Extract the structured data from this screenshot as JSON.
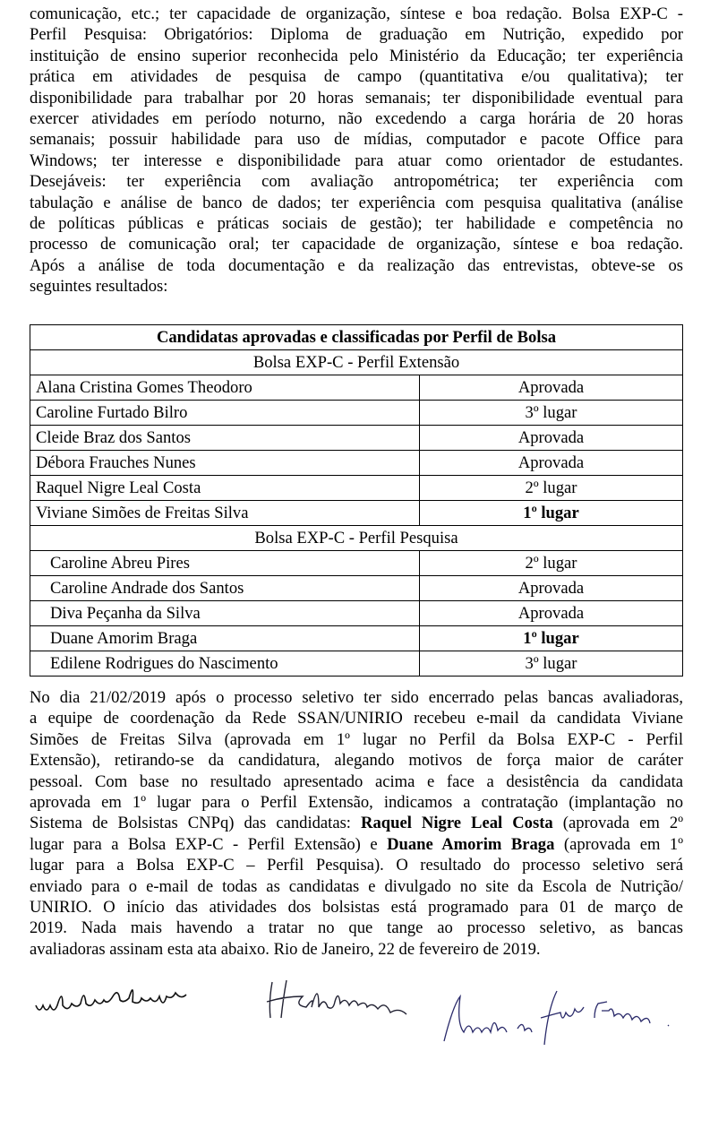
{
  "intro": {
    "lines": [
      "comunicação, etc.; ter capacidade de organização, síntese e boa redação. Bolsa EXP-C -",
      "Perfil Pesquisa: Obrigatórios: Diploma de graduação em Nutrição, expedido por",
      "instituição de ensino superior reconhecida pelo Ministério da Educação; ter experiência",
      "prática em atividades de pesquisa de campo (quantitativa e/ou qualitativa); ter",
      "disponibilidade para trabalhar por 20 horas semanais; ter disponibilidade eventual para",
      "exercer atividades em período noturno, não excedendo a carga horária de 20 horas",
      "semanais; possuir habilidade para uso de mídias, computador e pacote Office para",
      "Windows; ter interesse e disponibilidade para atuar como orientador de estudantes.",
      "Desejáveis: ter experiência com avaliação antropométrica; ter experiência com",
      "tabulação e análise de banco de dados; ter experiência com pesquisa qualitativa (análise",
      "de políticas públicas e práticas sociais de gestão); ter habilidade e competência no",
      "processo de comunicação oral; ter capacidade de organização, síntese e boa redação.",
      "Após a análise de toda documentação e da realização das entrevistas, obteve-se os",
      "seguintes resultados:"
    ]
  },
  "table": {
    "title": "Candidatas aprovadas e classificadas por Perfil de Bolsa",
    "sections": [
      {
        "label": "Bolsa EXP-C - Perfil Extensão",
        "rows": [
          {
            "name": "Alana Cristina Gomes Theodoro",
            "result": "Aprovada"
          },
          {
            "name": "Caroline Furtado Bilro",
            "result": "3º lugar"
          },
          {
            "name": "Cleide Braz dos Santos",
            "result": "Aprovada"
          },
          {
            "name": "Débora Frauches Nunes",
            "result": "Aprovada"
          },
          {
            "name": "Raquel Nigre Leal Costa",
            "result": "2º lugar"
          },
          {
            "name": "Viviane Simões de Freitas Silva",
            "result": "1º lugar"
          }
        ]
      },
      {
        "label": "Bolsa EXP-C - Perfil Pesquisa",
        "rows": [
          {
            "name": "Caroline Abreu Pires",
            "result": "2º lugar"
          },
          {
            "name": "Caroline Andrade dos Santos",
            "result": "Aprovada"
          },
          {
            "name": "Diva Peçanha da Silva",
            "result": "Aprovada"
          },
          {
            "name": "Duane Amorim Braga",
            "result": "1º lugar"
          },
          {
            "name": "Edilene Rodrigues do Nascimento",
            "result": "3º lugar"
          }
        ]
      }
    ]
  },
  "outro": {
    "lines": [
      "No dia 21/02/2019 após o processo seletivo ter sido encerrado pelas bancas avaliadoras,",
      "a equipe de coordenação da Rede SSAN/UNIRIO recebeu e-mail da candidata Viviane",
      "Simões de Freitas Silva (aprovada em 1º lugar no Perfil da Bolsa EXP-C - Perfil",
      "Extensão), retirando-se da candidatura, alegando motivos de força maior de caráter",
      "pessoal. Com base no resultado apresentado acima e face a desistência da candidata",
      "aprovada em 1º lugar para o Perfil Extensão, indicamos a contratação (implantação no"
    ],
    "line7": {
      "a": "Sistema de Bolsistas CNPq) das candidatas: ",
      "b": "Raquel Nigre Leal Costa",
      "c": " (aprovada em 2º"
    },
    "line8": {
      "a": "lugar para a Bolsa EXP-C - Perfil Extensão) e ",
      "b": "Duane Amorim Braga",
      "c": " (aprovada em 1º"
    },
    "lines_end": [
      "lugar para a Bolsa EXP-C – Perfil Pesquisa). O resultado do processo seletivo será",
      "enviado para o e-mail de todas as candidatas e divulgado no site da Escola de Nutrição/",
      "UNIRIO. O início das atividades dos bolsistas está programado para 01 de março de",
      "2019. Nada mais havendo a tratar no que tange ao processo seletivo, as bancas",
      "avaliadoras assinam esta ata abaixo. Rio de Janeiro, 22 de fevereiro de 2019."
    ]
  },
  "signatures": [
    "Lourdes Rodrigues",
    "H Salsouza",
    "Amanda da Silva Franco."
  ]
}
